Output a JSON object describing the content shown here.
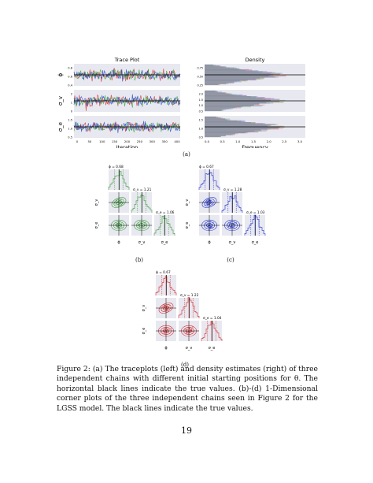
{
  "figure_a": {
    "trace_title": "Trace Plot",
    "density_title": "Density",
    "trace_xlabel": "Iteration",
    "density_xlabel": "Frequency",
    "trace_xticks": [
      "0",
      "50",
      "100",
      "150",
      "200",
      "250",
      "300",
      "350",
      "400"
    ],
    "density_xticks": [
      "0.0",
      "0.5",
      "1.0",
      "1.5",
      "2.0",
      "2.5",
      "3.0"
    ],
    "rows": [
      {
        "ylabel": "ϕ",
        "trace_yticks": [
          "0.8",
          "0.6",
          "0.4"
        ],
        "density_yticks": [
          "0.75",
          "0.50",
          "0.25"
        ]
      },
      {
        "ylabel": "σ_v",
        "trace_yticks": [
          "2",
          "1",
          "0"
        ],
        "density_yticks": [
          "2.0",
          "1.5",
          "1.0",
          "0.5"
        ]
      },
      {
        "ylabel": "σ_e",
        "trace_yticks": [
          "1.5",
          "1.0",
          "0.5"
        ],
        "density_yticks": [
          "1.5",
          "1.0",
          "0.5"
        ]
      }
    ],
    "colors": [
      "#d62728",
      "#2ca02c",
      "#1f3fc8"
    ]
  },
  "corner_b": {
    "color": "#3a9a3a",
    "phi_label": "ϕ = 0.68",
    "sv_label": "σ_v = 1.21",
    "se_label": "σ_e = 1.06",
    "axis_x": [
      "ϕ",
      "σ_v",
      "σ_e"
    ],
    "axis_y": [
      "σ_v",
      "σ_e"
    ]
  },
  "corner_c": {
    "color": "#2233cc",
    "phi_label": "ϕ = 0.67",
    "sv_label": "σ_v = 1.28",
    "se_label": "σ_e = 1.03",
    "axis_x": [
      "ϕ",
      "σ_v",
      "σ_e"
    ],
    "axis_y": [
      "σ_v",
      "σ_e"
    ]
  },
  "corner_d": {
    "color": "#d42a2a",
    "phi_label": "ϕ = 0.67",
    "sv_label": "σ_v = 1.22",
    "se_label": "σ_e = 1.04",
    "axis_x": [
      "ϕ",
      "σ_v",
      "σ_e"
    ],
    "axis_y": [
      "σ_v",
      "σ_e"
    ]
  },
  "labels": {
    "a": "(a)",
    "b": "(b)",
    "c": "(c)",
    "d": "(d)"
  },
  "caption": "Figure 2: (a) The traceplots (left) and density estimates (right) of three independent chains with different initial starting positions for θ. The horizontal black lines indicate the true values. (b)-(d) 1-Dimensional corner plots of the three independent chains seen in Figure 2 for the LGSS model. The black lines indicate the true values.",
  "page_number": "19"
}
